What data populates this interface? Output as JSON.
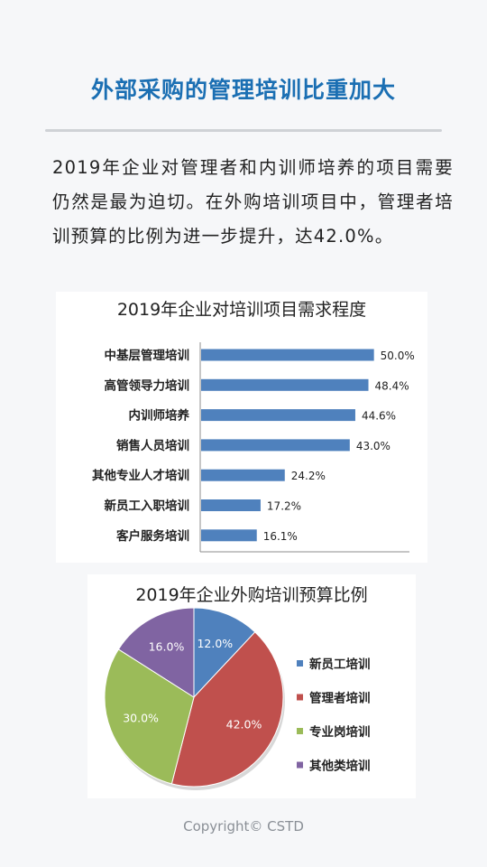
{
  "header": {
    "title": "外部采购的管理培训比重加大"
  },
  "intro": {
    "text": "2019年企业对管理者和内训师培养的项目需要仍然是最为迫切。在外购培训项目中，管理者培训预算的比例为进一步提升，达42.0%。"
  },
  "chart_data": [
    {
      "type": "bar",
      "orientation": "horizontal",
      "title": "2019年企业对培训项目需求程度",
      "categories": [
        "中基层管理培训",
        "高管领导力培训",
        "内训师培养",
        "销售人员培训",
        "其他专业人才培训",
        "新员工入职培训",
        "客户服务培训"
      ],
      "values": [
        50.0,
        48.4,
        44.6,
        43.0,
        24.2,
        17.2,
        16.1
      ],
      "value_labels": [
        "50.0%",
        "48.4%",
        "44.6%",
        "43.0%",
        "24.2%",
        "17.2%",
        "16.1%"
      ],
      "xlim": [
        0,
        60
      ],
      "color": "#4f81bd",
      "grid": false,
      "legend": "none"
    },
    {
      "type": "pie",
      "title": "2019年企业外购培训预算比例",
      "categories": [
        "新员工培训",
        "管理者培训",
        "专业岗培训",
        "其他类培训"
      ],
      "values": [
        12.0,
        42.0,
        30.0,
        16.0
      ],
      "value_labels": [
        "12.0%",
        "42.0%",
        "30.0%",
        "16.0%"
      ],
      "colors": [
        "#4f81bd",
        "#c0504d",
        "#9bbb59",
        "#8064a2"
      ],
      "legend": "right"
    }
  ],
  "footer": {
    "copyright": "Copyright© CSTD"
  }
}
